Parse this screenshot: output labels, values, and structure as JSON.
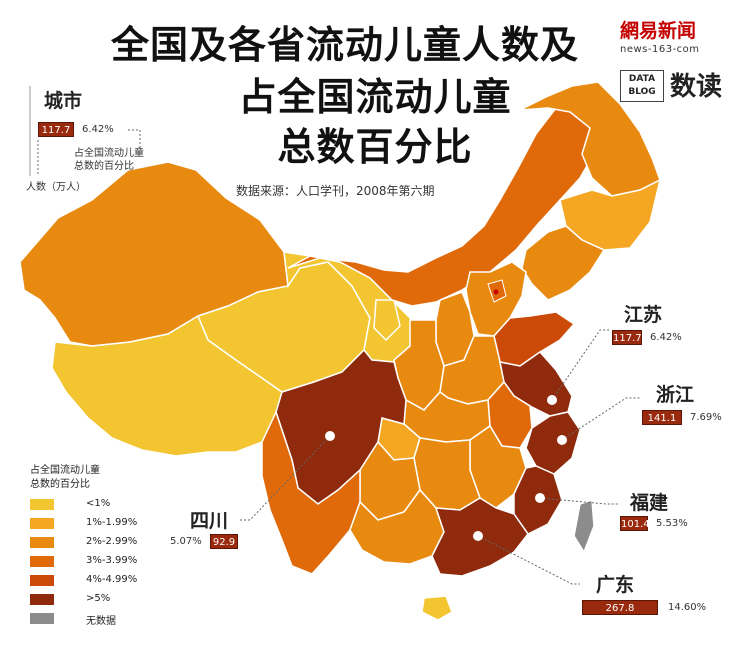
{
  "title": {
    "line1": "全国及各省流动儿童人数及",
    "line2": "占全国流动儿童",
    "line3": "总数百分比"
  },
  "source": "数据来源：人口学刊，2008年第六期",
  "brand": {
    "netease": "網易新闻",
    "url": "news-163-com",
    "data_blog_1": "DATA",
    "data_blog_2": "BLOG",
    "shudu": "数读"
  },
  "key": {
    "city_label": "城市",
    "sample_value": "117.7",
    "sample_pct": "6.42%",
    "pct_note_1": "占全国流动儿童",
    "pct_note_2": "总数的百分比",
    "count_note": "人数（万人）"
  },
  "legend": {
    "title_1": "占全国流动儿童",
    "title_2": "总数的百分比",
    "items": [
      {
        "label": "<1%",
        "color": "#f2c531"
      },
      {
        "label": "1%-1.99%",
        "color": "#f5a623"
      },
      {
        "label": "2%-2.99%",
        "color": "#e98a10"
      },
      {
        "label": "3%-3.99%",
        "color": "#e06a0a"
      },
      {
        "label": "4%-4.99%",
        "color": "#cc4a08"
      },
      {
        "label": ">5%",
        "color": "#8f2a0c"
      },
      {
        "label": "无数据",
        "color": "#8c8c8c"
      }
    ]
  },
  "callouts": [
    {
      "name": "江苏",
      "value": "117.7",
      "pct": "6.42%"
    },
    {
      "name": "浙江",
      "value": "141.1",
      "pct": "7.69%"
    },
    {
      "name": "福建",
      "value": "101.4",
      "pct": "5.53%"
    },
    {
      "name": "广东",
      "value": "267.8",
      "pct": "14.60%"
    },
    {
      "name": "四川",
      "value": "92.9",
      "pct": "5.07%"
    }
  ]
}
